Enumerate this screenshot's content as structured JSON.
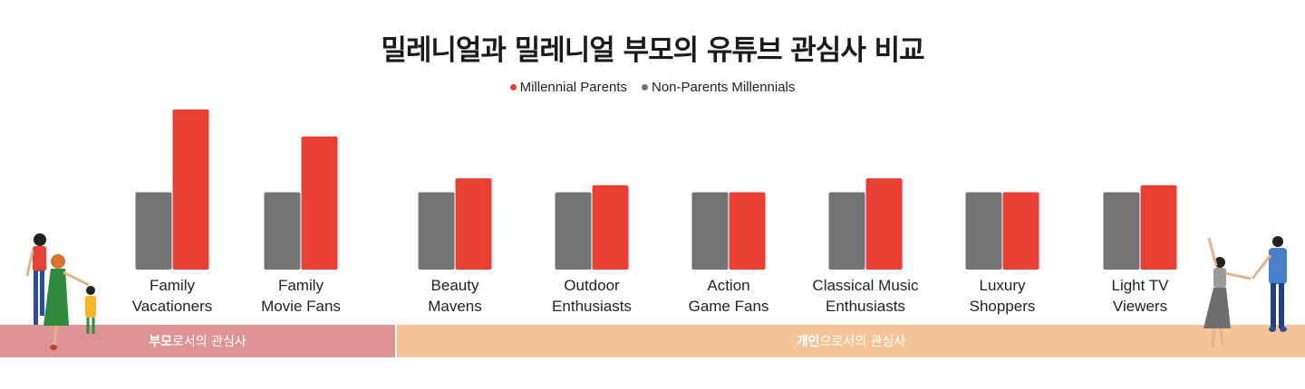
{
  "title": "밀레니얼과 밀레니얼 부모의 유튜브 관심사 비교",
  "legend": [
    {
      "name": "Millennial Parents",
      "color": "#ea3f34"
    },
    {
      "name": "Non-Parents Millennials",
      "color": "#737373"
    }
  ],
  "bands": [
    {
      "bold": "부모",
      "rest": "로서의 관심사",
      "color": "#dd9493"
    },
    {
      "bold": "개인",
      "rest": "으로서의 관심사",
      "color": "#f4c496"
    }
  ],
  "chart_data": {
    "type": "bar",
    "categories": [
      [
        "Family",
        "Vacationers"
      ],
      [
        "Family",
        "Movie Fans"
      ],
      [
        "Beauty",
        "Mavens"
      ],
      [
        "Outdoor",
        "Enthusiasts"
      ],
      [
        "Action",
        "Game Fans"
      ],
      [
        "Classical Music",
        "Enthusiasts"
      ],
      [
        "Luxury",
        "Shoppers"
      ],
      [
        "Light TV",
        "Viewers"
      ]
    ],
    "series": [
      {
        "name": "Non-Parents Millennials",
        "color": "#737373",
        "values": [
          1,
          1,
          1,
          1,
          1,
          1,
          1,
          1
        ]
      },
      {
        "name": "Millennial Parents",
        "color": "#ea3f34",
        "values": [
          2.07,
          1.72,
          1.18,
          1.09,
          1.0,
          1.18,
          1.0,
          1.09
        ]
      }
    ],
    "ylim": [
      0,
      2.07
    ],
    "grid": false,
    "legend_position": "top-center"
  },
  "illustrations": [
    "family-illustration",
    "couple-illustration"
  ]
}
